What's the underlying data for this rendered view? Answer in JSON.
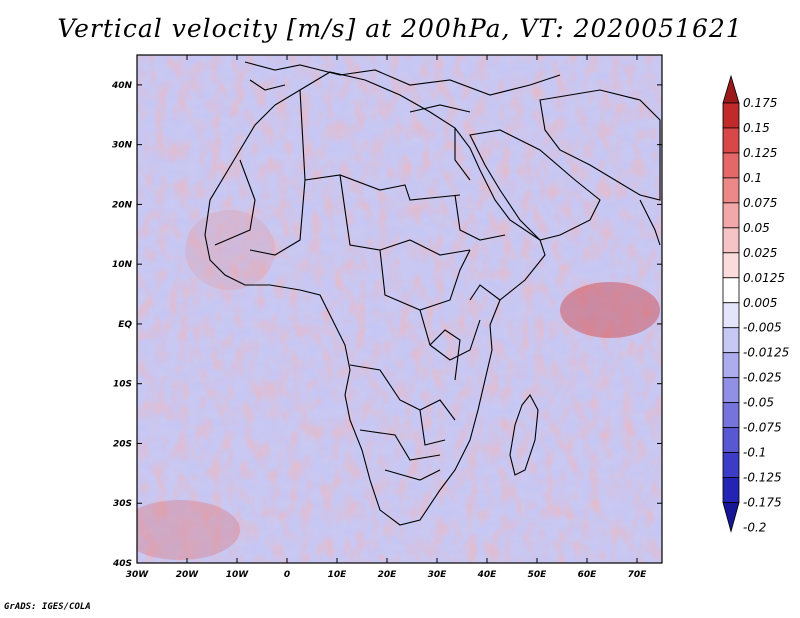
{
  "title": "Vertical velocity [m/s] at 200hPa, VT: 2020051621",
  "footer": "GrADS: IGES/COLA",
  "map": {
    "lat_labels": [
      "40N",
      "30N",
      "20N",
      "10N",
      "EQ",
      "10S",
      "20S",
      "30S",
      "40S"
    ],
    "lon_labels": [
      "30W",
      "20W",
      "10W",
      "0",
      "10E",
      "20E",
      "30E",
      "40E",
      "50E",
      "60E",
      "70E"
    ],
    "lat_range": [
      -40,
      45
    ],
    "lon_range": [
      -30,
      75
    ]
  },
  "colorbar": {
    "labels": [
      "0.175",
      "0.15",
      "0.125",
      "0.1",
      "0.075",
      "0.05",
      "0.025",
      "0.0125",
      "0.005",
      "-0.005",
      "-0.0125",
      "-0.025",
      "-0.05",
      "-0.075",
      "-0.1",
      "-0.125",
      "-0.175",
      "-0.2"
    ],
    "colors": [
      "#9a1a1a",
      "#c02a2a",
      "#d84848",
      "#e46868",
      "#ec8888",
      "#f2a8a8",
      "#f6c4c4",
      "#fadcdc",
      "#ffffff",
      "#e4e4fa",
      "#c8c8f4",
      "#acacee",
      "#9090e4",
      "#7474dc",
      "#5858d2",
      "#3c3cc6",
      "#2424b4",
      "#161696"
    ]
  }
}
